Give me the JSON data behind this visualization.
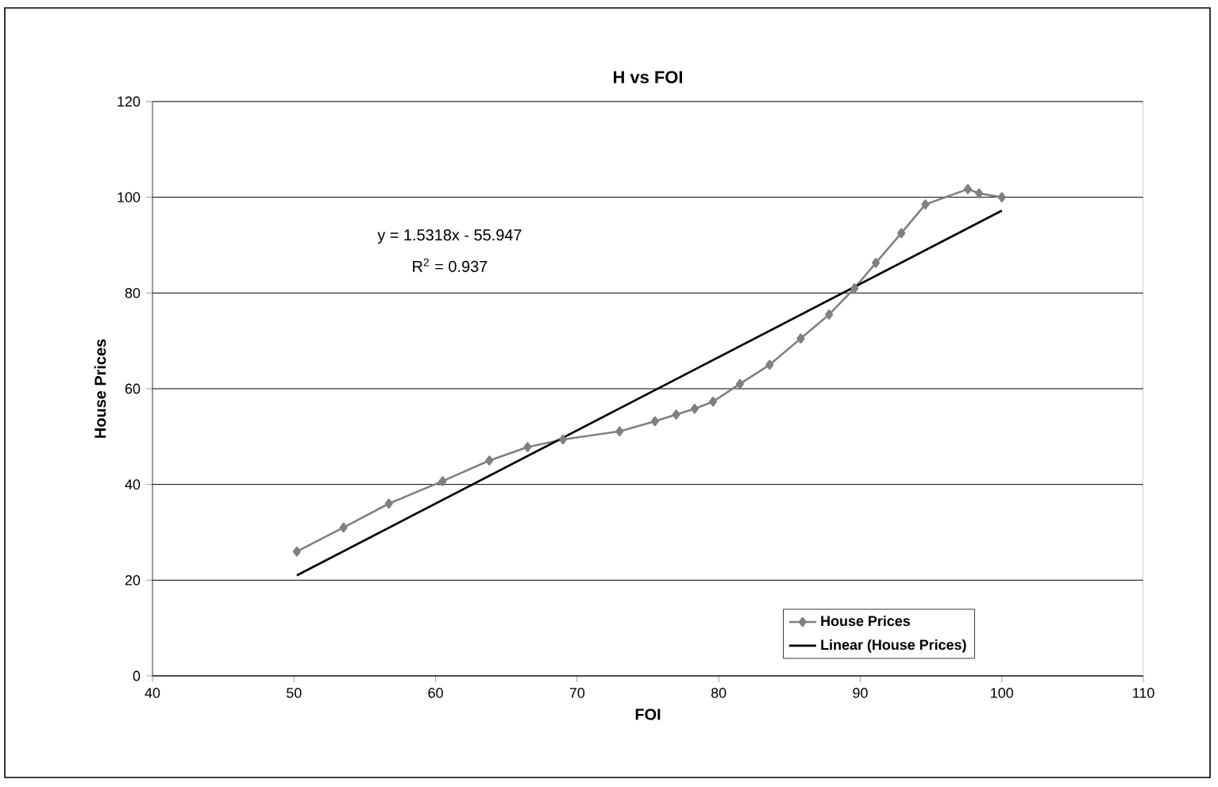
{
  "chart_data": {
    "type": "line",
    "title": "H vs FOI",
    "xlabel": "FOI",
    "ylabel": "House Prices",
    "xlim": [
      40,
      110
    ],
    "xticks": [
      40,
      50,
      60,
      70,
      80,
      90,
      100,
      110
    ],
    "ylim": [
      0,
      120
    ],
    "yticks": [
      0,
      20,
      40,
      60,
      80,
      100,
      120
    ],
    "grid": "y",
    "legend": "bottom right",
    "series": [
      {
        "name": "House Prices",
        "color": "#808080",
        "marker": "diamond",
        "x": [
          50.2,
          53.5,
          56.7,
          60.5,
          63.8,
          66.5,
          69,
          73,
          75.5,
          77,
          78.3,
          79.6,
          81.5,
          83.6,
          85.8,
          87.8,
          89.6,
          91.1,
          92.9,
          94.6,
          97.6,
          98.4,
          100
        ],
        "values": [
          26,
          31,
          36,
          40.7,
          45,
          47.8,
          49.4,
          51.1,
          53.2,
          54.6,
          55.8,
          57.3,
          61,
          65,
          70.5,
          75.5,
          81,
          86.3,
          92.5,
          98.5,
          101.7,
          100.8,
          100
        ]
      },
      {
        "name": "Linear (House Prices)",
        "color": "#000000",
        "marker": "none",
        "x": [
          50.2,
          100
        ],
        "values": [
          21,
          97.2
        ]
      }
    ],
    "annotations": [
      "y = 1.5318x - 55.947",
      "R$^{2}$ = 0.937"
    ]
  }
}
